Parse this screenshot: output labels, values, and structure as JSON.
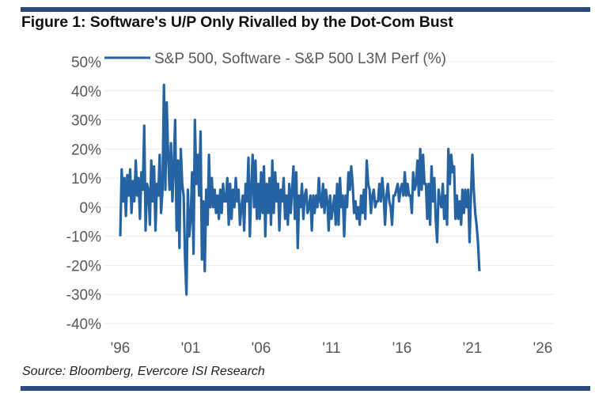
{
  "title": "Figure 1: Software's U/P Only Rivalled by the Dot-Com Bust",
  "source": "Source: Bloomberg, Evercore ISI Research",
  "colors": {
    "line": "#2563a3",
    "rule": "#2a4b7c",
    "grid": "#ececec"
  },
  "chart_data": {
    "type": "line",
    "title": "Figure 1: Software's U/P Only Rivalled by the Dot-Com Bust",
    "xlabel": "",
    "ylabel": "",
    "ylim": [
      -40,
      50
    ],
    "xlim": [
      1996,
      2026
    ],
    "y_ticks": [
      "50%",
      "40%",
      "30%",
      "20%",
      "10%",
      "0%",
      "-10%",
      "-20%",
      "-30%",
      "-40%"
    ],
    "y_tick_values": [
      50,
      40,
      30,
      20,
      10,
      0,
      -10,
      -20,
      -30,
      -40
    ],
    "x_ticks": [
      "'96",
      "'01",
      "'06",
      "'11",
      "'16",
      "'21",
      "'26"
    ],
    "x_tick_values": [
      1996,
      2001,
      2006,
      2011,
      2016,
      2021,
      2026
    ],
    "grid": true,
    "legend_position": "top",
    "series": [
      {
        "name": "S&P 500, Software - S&P 500 L3M Perf (%)",
        "x_start": 1996.0,
        "x_step": 0.1,
        "values": [
          -10,
          13,
          2,
          10,
          -3,
          11,
          4,
          13,
          -2,
          9,
          2,
          16,
          4,
          10,
          -4,
          12,
          6,
          28,
          -8,
          8,
          6,
          -6,
          16,
          2,
          14,
          -8,
          8,
          4,
          18,
          -2,
          6,
          42,
          6,
          36,
          18,
          6,
          22,
          2,
          14,
          30,
          -8,
          16,
          -14,
          20,
          8,
          4,
          -18,
          -30,
          6,
          -10,
          -4,
          12,
          -16,
          30,
          8,
          18,
          4,
          26,
          -18,
          2,
          -22,
          6,
          -6,
          18,
          0,
          10,
          0,
          6,
          -2,
          4,
          -4,
          6,
          -2,
          8,
          2,
          2,
          10,
          -6,
          8,
          -4,
          6,
          0,
          10,
          2,
          6,
          -6,
          0,
          4,
          -8,
          8,
          2,
          17,
          -10,
          6,
          18,
          0,
          16,
          -4,
          8,
          -4,
          12,
          -2,
          14,
          -10,
          8,
          -2,
          10,
          -6,
          16,
          -2,
          12,
          2,
          8,
          -8,
          6,
          2,
          10,
          -4,
          4,
          -6,
          8,
          -2,
          6,
          14,
          -4,
          12,
          -14,
          4,
          0,
          8,
          -4,
          4,
          6,
          -2,
          0,
          4,
          -8,
          4,
          -2,
          4,
          0,
          10,
          2,
          0,
          8,
          -2,
          6,
          2,
          -8,
          4,
          -4,
          0,
          4,
          -6,
          8,
          -6,
          10,
          0,
          4,
          -10,
          4,
          0,
          12,
          6,
          14,
          8,
          -2,
          2,
          -4,
          0,
          -6,
          4,
          -2,
          6,
          -4,
          16,
          8,
          6,
          -2,
          4,
          6,
          0,
          2,
          2,
          8,
          2,
          10,
          4,
          -6,
          4,
          8,
          2,
          0,
          -6,
          4,
          4,
          6,
          8,
          2,
          6,
          8,
          4,
          12,
          4,
          8,
          4,
          4,
          -2,
          12,
          6,
          8,
          16,
          4,
          20,
          6,
          18,
          8,
          8,
          -4,
          8,
          -6,
          14,
          2,
          10,
          -4,
          -12,
          6,
          2,
          0,
          8,
          -4,
          4,
          -6,
          20,
          8,
          18,
          12,
          14,
          -4,
          4,
          -4,
          2,
          -6,
          6,
          -2,
          6,
          0,
          6,
          -12,
          4,
          18,
          6,
          -2,
          -6,
          -12,
          -22
        ]
      }
    ]
  }
}
